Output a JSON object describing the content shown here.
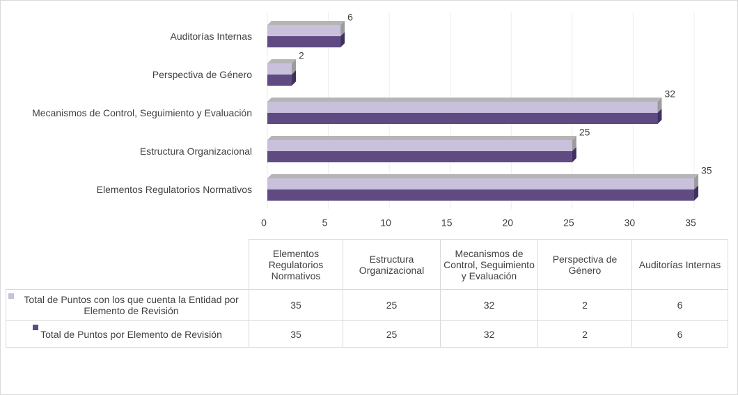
{
  "chart_data": {
    "type": "bar",
    "orientation": "horizontal",
    "categories": [
      "Elementos Regulatorios Normativos",
      "Estructura Organizacional",
      "Mecanismos de Control, Seguimiento y Evaluación",
      "Perspectiva de Género",
      "Auditorías Internas"
    ],
    "series": [
      {
        "name": "Total de Puntos con los que cuenta la Entidad por Elemento de Revisión",
        "color": "#c9c1db",
        "values": [
          35,
          25,
          32,
          2,
          6
        ]
      },
      {
        "name": "Total de Puntos por Elemento de Revisión",
        "color": "#5f4a82",
        "values": [
          35,
          25,
          32,
          2,
          6
        ]
      }
    ],
    "xlim": [
      0,
      35
    ],
    "xticks": [
      0,
      5,
      10,
      15,
      20,
      25,
      30,
      35
    ],
    "grid": true
  }
}
